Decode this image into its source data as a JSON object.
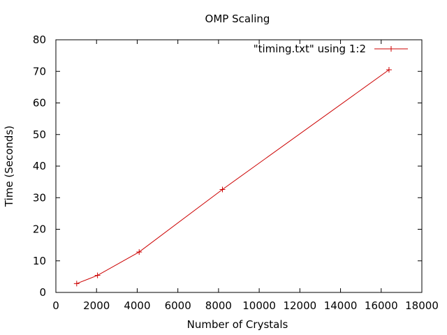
{
  "chart_data": {
    "type": "line",
    "title": "OMP Scaling",
    "xlabel": "Number of Crystals",
    "ylabel": "Time (Seconds)",
    "xlim": [
      0,
      18000
    ],
    "ylim": [
      0,
      80
    ],
    "xticks": [
      0,
      2000,
      4000,
      6000,
      8000,
      10000,
      12000,
      14000,
      16000,
      18000
    ],
    "yticks": [
      0,
      10,
      20,
      30,
      40,
      50,
      60,
      70,
      80
    ],
    "grid": false,
    "legend_position": "top-right",
    "series": [
      {
        "name": "\"timing.txt\" using 1:2",
        "color": "#cc0000",
        "marker": "plus",
        "x": [
          1024,
          2048,
          4096,
          8192,
          16384
        ],
        "y": [
          2.8,
          5.4,
          12.8,
          32.6,
          70.5
        ]
      }
    ]
  }
}
